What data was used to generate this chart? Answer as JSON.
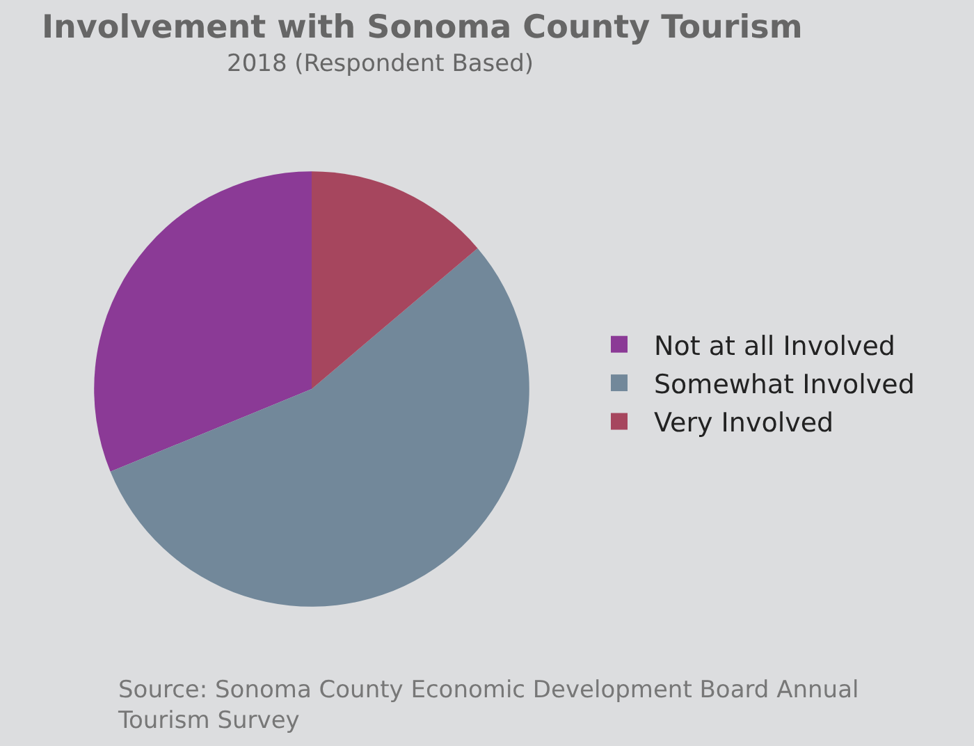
{
  "chart_data": {
    "type": "pie",
    "title": "Involvement with Sonoma County Tourism",
    "subtitle": "2018 (Respondent Based)",
    "categories": [
      "Not at all Involved",
      "Somewhat Involved",
      "Very Involved"
    ],
    "values": [
      31.2,
      55.0,
      13.8
    ],
    "colors": [
      "#8b3a96",
      "#72889a",
      "#a6465e"
    ],
    "legend": "right",
    "annotations": [
      "Source: Sonoma County Economic Development Board Annual Tourism Survey"
    ]
  }
}
